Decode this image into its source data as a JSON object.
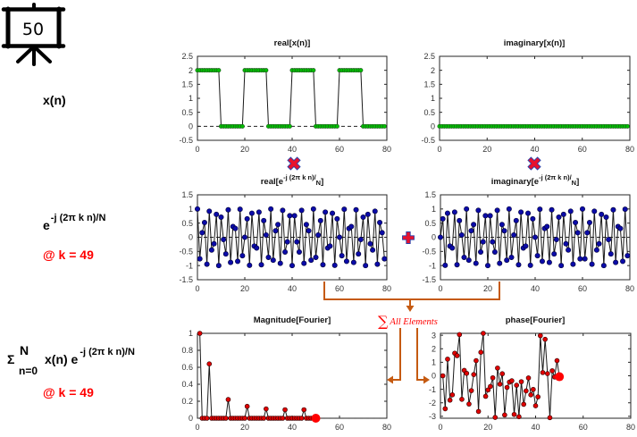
{
  "slide": {
    "number": "50"
  },
  "row_labels": {
    "signal": "x(n)",
    "kernel": {
      "base": "e",
      "exponent": "-j (2π k n)/N",
      "note": "@ k = 49"
    },
    "fourier_sum": {
      "sigma": "Σ",
      "upper": "N",
      "lower": "n=0",
      "body": "x(n) e",
      "exponent": "-j (2π k n)/N",
      "note": "@ k = 49"
    }
  },
  "operators": {
    "multiply": "multiply-icon",
    "add": "plus-icon"
  },
  "connectors": {
    "sum_symbol": "∑",
    "sum_label": "All Elements"
  },
  "colors": {
    "accent_red": "#ff0000",
    "connector_orange": "#c55a11",
    "operator_fill": "#e8112d",
    "operator_edge": "#2b3fa8"
  },
  "chart_data": [
    {
      "id": "real-xn",
      "type": "line",
      "title": {
        "main": "real[x(n)]"
      },
      "xlabel": "",
      "ylabel": "",
      "xlim": [
        0,
        80
      ],
      "ylim": [
        -0.5,
        2.5
      ],
      "xticks": [
        0,
        20,
        40,
        60,
        80
      ],
      "yticks": [
        -0.5,
        0,
        0.5,
        1,
        1.5,
        2,
        2.5
      ],
      "grid": false,
      "x_start": 0,
      "values": [
        2,
        2,
        2,
        2,
        2,
        2,
        2,
        2,
        2,
        2,
        0,
        0,
        0,
        0,
        0,
        0,
        0,
        0,
        0,
        0,
        2,
        2,
        2,
        2,
        2,
        2,
        2,
        2,
        2,
        2,
        0,
        0,
        0,
        0,
        0,
        0,
        0,
        0,
        0,
        0,
        2,
        2,
        2,
        2,
        2,
        2,
        2,
        2,
        2,
        2,
        0,
        0,
        0,
        0,
        0,
        0,
        0,
        0,
        0,
        0,
        2,
        2,
        2,
        2,
        2,
        2,
        2,
        2,
        2,
        2,
        0,
        0,
        0,
        0,
        0,
        0,
        0,
        0,
        0,
        0
      ],
      "marker_color": "#00c000",
      "marker_edge": "#1d4d1d",
      "zero_line": [
        0,
        80
      ]
    },
    {
      "id": "imag-xn",
      "type": "line",
      "title": {
        "main": "imaginary[x(n)]"
      },
      "xlabel": "",
      "ylabel": "",
      "xlim": [
        0,
        80
      ],
      "ylim": [
        -0.5,
        2.5
      ],
      "xticks": [
        0,
        20,
        40,
        60,
        80
      ],
      "yticks": [
        -0.5,
        0,
        0.5,
        1,
        1.5,
        2,
        2.5
      ],
      "grid": false,
      "x_start": 0,
      "values": [
        0,
        0,
        0,
        0,
        0,
        0,
        0,
        0,
        0,
        0,
        0,
        0,
        0,
        0,
        0,
        0,
        0,
        0,
        0,
        0,
        0,
        0,
        0,
        0,
        0,
        0,
        0,
        0,
        0,
        0,
        0,
        0,
        0,
        0,
        0,
        0,
        0,
        0,
        0,
        0,
        0,
        0,
        0,
        0,
        0,
        0,
        0,
        0,
        0,
        0,
        0,
        0,
        0,
        0,
        0,
        0,
        0,
        0,
        0,
        0,
        0,
        0,
        0,
        0,
        0,
        0,
        0,
        0,
        0,
        0,
        0,
        0,
        0,
        0,
        0,
        0,
        0,
        0,
        0,
        0
      ],
      "marker_color": "#00c000",
      "marker_edge": "#1d4d1d",
      "zero_line": [
        0,
        80
      ]
    },
    {
      "id": "real-kernel",
      "type": "line",
      "title": {
        "main": "real[e",
        "sup": "-j (2π k n)/",
        "sub": "N",
        "tail": "]"
      },
      "xlabel": "",
      "ylabel": "",
      "xlim": [
        0,
        80
      ],
      "ylim": [
        -1.5,
        1.5
      ],
      "xticks": [
        0,
        20,
        40,
        60,
        80
      ],
      "yticks": [
        -1.5,
        -1,
        -0.5,
        0,
        0.5,
        1,
        1.5
      ],
      "grid": false,
      "x_start": 0,
      "values": [
        1,
        -0.76,
        0.16,
        0.52,
        -0.95,
        0.92,
        -0.45,
        -0.23,
        0.81,
        -1,
        0.71,
        -0.08,
        -0.59,
        0.97,
        -0.89,
        0.38,
        0.31,
        -0.85,
        0.99,
        -0.65,
        0,
        0.65,
        -0.99,
        0.85,
        -0.31,
        -0.38,
        0.89,
        -0.97,
        0.59,
        0.08,
        -0.71,
        1,
        -0.81,
        0.23,
        0.45,
        -0.92,
        0.95,
        -0.52,
        -0.16,
        0.76,
        -1,
        0.76,
        -0.16,
        -0.52,
        0.95,
        -0.92,
        0.45,
        0.23,
        -0.81,
        1,
        -0.71,
        0.08,
        0.59,
        -0.97,
        0.89,
        -0.38,
        -0.31,
        0.85,
        -0.99,
        0.65,
        0,
        -0.65,
        0.99,
        -0.85,
        0.31,
        0.38,
        -0.89,
        0.97,
        -0.59,
        -0.08,
        0.71,
        -1,
        0.81,
        -0.23,
        -0.45,
        0.92,
        -0.95,
        0.52,
        0.16,
        -0.76
      ],
      "marker_color": "#0b0ba8",
      "marker_edge": "#000033",
      "zero_line": [
        0,
        80
      ]
    },
    {
      "id": "imag-kernel",
      "type": "line",
      "title": {
        "main": "imaginary[e",
        "sup": "-j (2π k n)/",
        "sub": "N",
        "tail": "]"
      },
      "xlabel": "",
      "ylabel": "",
      "xlim": [
        0,
        80
      ],
      "ylim": [
        -1.5,
        1.5
      ],
      "xticks": [
        0,
        20,
        40,
        60,
        80
      ],
      "yticks": [
        -1.5,
        -1,
        -0.5,
        0,
        0.5,
        1,
        1.5
      ],
      "grid": false,
      "x_start": 0,
      "values": [
        0,
        0.65,
        -0.99,
        0.85,
        -0.31,
        -0.38,
        0.89,
        -0.97,
        0.59,
        0.08,
        -0.71,
        1,
        -0.81,
        0.23,
        0.45,
        -0.92,
        0.95,
        -0.52,
        -0.16,
        0.76,
        -1,
        0.76,
        -0.16,
        -0.52,
        0.95,
        -0.92,
        0.45,
        0.23,
        -0.81,
        1,
        -0.71,
        0.08,
        0.59,
        -0.97,
        0.89,
        -0.38,
        -0.31,
        0.85,
        -0.99,
        0.65,
        0,
        -0.65,
        0.99,
        -0.85,
        0.31,
        0.38,
        -0.89,
        0.97,
        -0.59,
        -0.08,
        0.71,
        -1,
        0.81,
        -0.23,
        -0.45,
        0.92,
        -0.95,
        0.52,
        0.16,
        -0.76,
        1,
        -0.76,
        0.16,
        0.52,
        -0.95,
        0.92,
        -0.45,
        -0.23,
        0.81,
        -1,
        0.71,
        -0.08,
        -0.59,
        0.97,
        -0.89,
        0.38,
        0.31,
        -0.85,
        0.99,
        -0.65
      ],
      "marker_color": "#0b0ba8",
      "marker_edge": "#000033",
      "zero_line": [
        0,
        80
      ]
    },
    {
      "id": "magnitude-fourier",
      "type": "line",
      "title": {
        "main": "Magnitude[Fourier]"
      },
      "xlabel": "",
      "ylabel": "",
      "xlim": [
        0,
        80
      ],
      "ylim": [
        0,
        1
      ],
      "xticks": [
        0,
        20,
        40,
        60,
        80
      ],
      "yticks": [
        0,
        0.2,
        0.4,
        0.6,
        0.8,
        1
      ],
      "grid": false,
      "x_start": 1,
      "values": [
        1,
        0,
        0,
        0,
        0.64,
        0,
        0,
        0,
        0,
        0,
        0,
        0,
        0.22,
        0,
        0,
        0,
        0,
        0,
        0,
        0,
        0.14,
        0,
        0,
        0,
        0,
        0,
        0,
        0,
        0.11,
        0,
        0,
        0,
        0,
        0,
        0,
        0,
        0.1,
        0,
        0,
        0,
        0,
        0,
        0,
        0,
        0.1,
        0,
        0,
        0,
        0,
        0
      ],
      "marker_color": "#e00000",
      "marker_edge": "#2a0000",
      "zero_line": [
        50,
        80
      ],
      "highlight": {
        "x": 50,
        "y": 0,
        "color": "#ff0000"
      }
    },
    {
      "id": "phase-fourier",
      "type": "line",
      "title": {
        "main": "phase[Fourier]"
      },
      "xlabel": "",
      "ylabel": "",
      "xlim": [
        0,
        80
      ],
      "ylim": [
        -3.1416,
        3.1416
      ],
      "xticks": [
        0,
        20,
        40,
        60,
        80
      ],
      "yticks": [
        -3,
        -2,
        -1,
        0,
        1,
        2,
        3
      ],
      "grid": false,
      "x_start": 1,
      "values": [
        0,
        -2.44,
        1.23,
        -1.8,
        -1.41,
        1.67,
        1.49,
        3.05,
        -1.74,
        0.4,
        0.18,
        -2.09,
        -1.1,
        0.09,
        1.12,
        -2.64,
        1.74,
        3.14,
        -1.52,
        -1.05,
        -0.79,
        -0.15,
        -3.08,
        0.57,
        -0.62,
        0.15,
        -2.9,
        -0.86,
        -0.47,
        -0.37,
        -2.86,
        -0.7,
        -3.03,
        -0.44,
        -2.11,
        -1.12,
        -0.16,
        -1.41,
        -1.01,
        -2.22,
        -1.56,
        2.97,
        0.24,
        2.7,
        0.16,
        -3.1,
        0.37,
        -0.09,
        1.12,
        -0.07
      ],
      "marker_color": "#e00000",
      "marker_edge": "#2a0000",
      "highlight": {
        "x": 50,
        "y": -0.07,
        "color": "#ff0000"
      }
    }
  ]
}
